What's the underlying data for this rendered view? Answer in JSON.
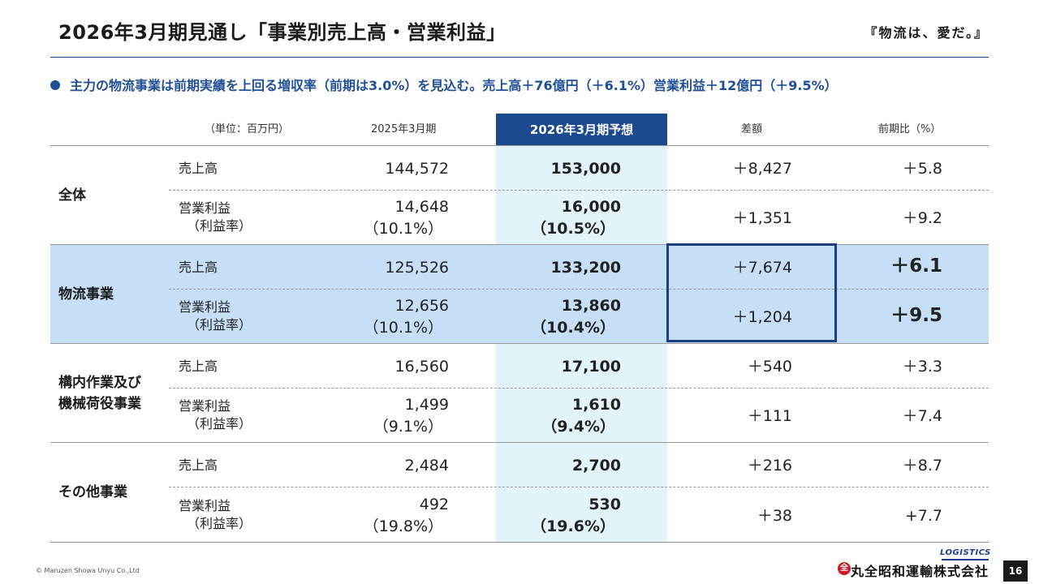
{
  "header": {
    "title": "2026年3月期見通し「事業別売上高・営業利益」",
    "slogan": "『物流は、愛だ。』"
  },
  "summary": "主力の物流事業は前期実績を上回る増収率（前期は3.0%）を見込む。売上高＋76億円（＋6.1%）営業利益＋12億円（＋9.5%）",
  "table": {
    "unit_label": "（単位：百万円）",
    "columns": [
      "2025年3月期",
      "2026年3月期予想",
      "差額",
      "前期比（%）"
    ],
    "rows": [
      {
        "segment": "全体",
        "sales": {
          "label": "売上高",
          "prev": "144,572",
          "forecast": "153,000",
          "diff": "＋8,427",
          "ratio": "＋5.8"
        },
        "profit": {
          "label": "営業利益",
          "sublabel": "（利益率）",
          "prev": "14,648",
          "prev_margin": "（10.1%）",
          "forecast": "16,000",
          "forecast_margin": "（10.5%）",
          "diff": "＋1,351",
          "ratio": "＋9.2"
        }
      },
      {
        "segment": "物流事業",
        "sales": {
          "label": "売上高",
          "prev": "125,526",
          "forecast": "133,200",
          "diff": "＋7,674",
          "ratio": "＋6.1"
        },
        "profit": {
          "label": "営業利益",
          "sublabel": "（利益率）",
          "prev": "12,656",
          "prev_margin": "（10.1%）",
          "forecast": "13,860",
          "forecast_margin": "（10.4%）",
          "diff": "＋1,204",
          "ratio": "＋9.5"
        }
      },
      {
        "segment": "構内作業及び機械荷役事業",
        "segment_lines": [
          "構内作業及び",
          "機械荷役事業"
        ],
        "sales": {
          "label": "売上高",
          "prev": "16,560",
          "forecast": "17,100",
          "diff": "＋540",
          "ratio": "＋3.3"
        },
        "profit": {
          "label": "営業利益",
          "sublabel": "（利益率）",
          "prev": "1,499",
          "prev_margin": "（9.1%）",
          "forecast": "1,610",
          "forecast_margin": "（9.4%）",
          "diff": "＋111",
          "ratio": "＋7.4"
        }
      },
      {
        "segment": "その他事業",
        "sales": {
          "label": "売上高",
          "prev": "2,484",
          "forecast": "2,700",
          "diff": "＋216",
          "ratio": "＋8.7"
        },
        "profit": {
          "label": "営業利益",
          "sublabel": "（利益率）",
          "prev": "492",
          "prev_margin": "（19.8%）",
          "forecast": "530",
          "forecast_margin": "（19.6%）",
          "diff": "＋38",
          "ratio": "+7.7"
        }
      }
    ]
  },
  "footer": {
    "copyright": "© Maruzen Showa Unyu Co.,Ltd",
    "company": "丸全昭和運輸株式会社",
    "logo_word": "LOGISTICS",
    "page": "16"
  },
  "colors": {
    "accent": "#1b4a8f",
    "highlight_band": "#c6def6",
    "forecast_column": "#e3f3fa"
  }
}
